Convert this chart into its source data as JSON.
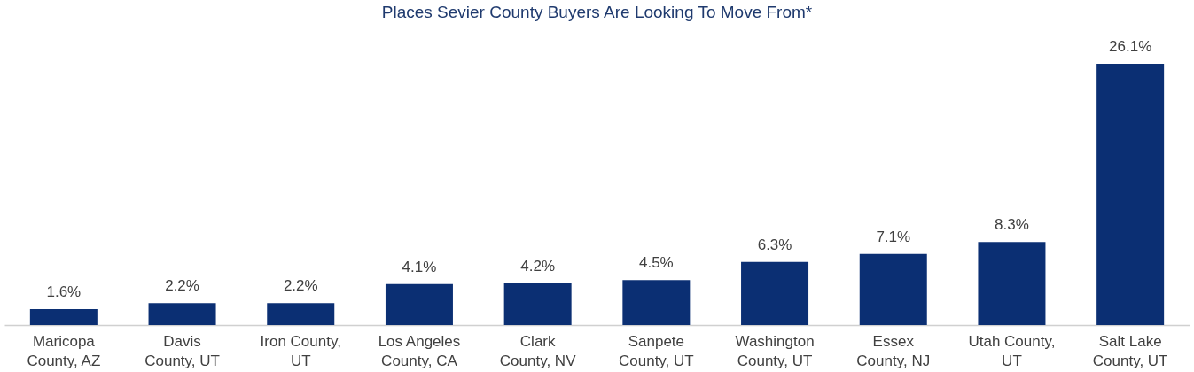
{
  "chart_data": {
    "type": "bar",
    "title": "Places Sevier County Buyers Are Looking To Move From*",
    "categories": [
      "Maricopa County, AZ",
      "Davis County, UT",
      "Iron County, UT",
      "Los Angeles County, CA",
      "Clark County, NV",
      "Sanpete County, UT",
      "Washington County, UT",
      "Essex County, NJ",
      "Utah County, UT",
      "Salt Lake County, UT"
    ],
    "values": [
      1.6,
      2.2,
      2.2,
      4.1,
      4.2,
      4.5,
      6.3,
      7.1,
      8.3,
      26.1
    ],
    "value_labels": [
      "1.6%",
      "2.2%",
      "2.2%",
      "4.1%",
      "4.2%",
      "4.5%",
      "6.3%",
      "7.1%",
      "8.3%",
      "26.1%"
    ],
    "color": "#0b2f73",
    "grid": false
  }
}
